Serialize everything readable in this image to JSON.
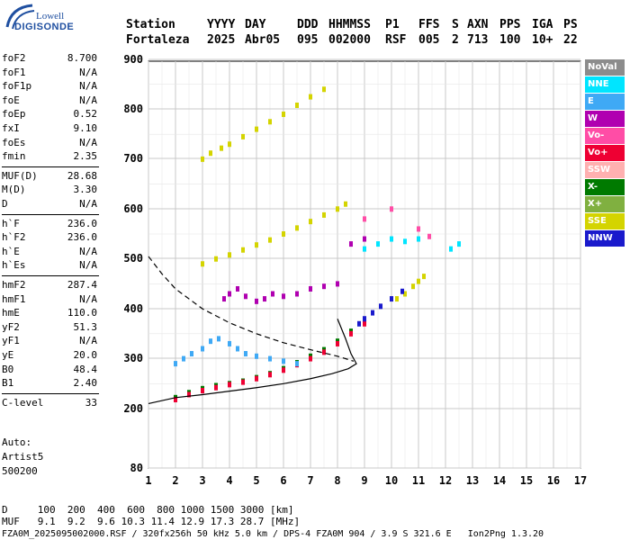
{
  "logo": {
    "brand": "Lowell",
    "product": "DIGISONDE"
  },
  "header": {
    "labels": [
      "Station",
      "YYYY",
      "DAY",
      "DDD",
      "HHMMSS",
      "P1",
      "FFS",
      "S",
      "AXN",
      "PPS",
      "IGA",
      "PS"
    ],
    "values": [
      "Fortaleza",
      "2025",
      "Abr05",
      "095",
      "002000",
      "RSF",
      "005",
      "2",
      "713",
      "100",
      "10+",
      "22"
    ]
  },
  "params": [
    {
      "k": "foF2",
      "v": "8.700"
    },
    {
      "k": "foF1",
      "v": "N/A"
    },
    {
      "k": "foF1p",
      "v": "N/A"
    },
    {
      "k": "foE",
      "v": "N/A"
    },
    {
      "k": "foEp",
      "v": "0.52"
    },
    {
      "k": "fxI",
      "v": "9.10"
    },
    {
      "k": "foEs",
      "v": "N/A"
    },
    {
      "k": "fmin",
      "v": "2.35"
    },
    {
      "k": "MUF(D)",
      "v": "28.68"
    },
    {
      "k": "M(D)",
      "v": "3.30"
    },
    {
      "k": "D",
      "v": "N/A"
    },
    {
      "k": "h`F",
      "v": "236.0"
    },
    {
      "k": "h`F2",
      "v": "236.0"
    },
    {
      "k": "h`E",
      "v": "N/A"
    },
    {
      "k": "h`Es",
      "v": "N/A"
    },
    {
      "k": "hmF2",
      "v": "287.4"
    },
    {
      "k": "hmF1",
      "v": "N/A"
    },
    {
      "k": "hmE",
      "v": "110.0"
    },
    {
      "k": "yF2",
      "v": "51.3"
    },
    {
      "k": "yF1",
      "v": "N/A"
    },
    {
      "k": "yE",
      "v": "20.0"
    },
    {
      "k": "B0",
      "v": "48.4"
    },
    {
      "k": "B1",
      "v": "2.40"
    },
    {
      "k": "C-level",
      "v": "33"
    }
  ],
  "auto": {
    "line1": "Auto:",
    "line2": "Artist5",
    "line3": "500200"
  },
  "bottom": {
    "d_line": "D     100  200  400  600  800 1000 1500 3000 [km]",
    "muf_line": "MUF   9.1  9.2  9.6 10.3 11.4 12.9 17.3 28.7 [MHz]",
    "file_line": "FZA0M_2025095002000.RSF / 320fx256h 50 kHz 5.0 km / DPS-4 FZA0M 904 / 3.9 S 321.6 E   Ion2Png 1.3.20"
  },
  "legend": [
    {
      "label": "NoVal",
      "color": "#8c8c8c",
      "text": "#ffffff"
    },
    {
      "label": "NNE",
      "color": "#00e5ff",
      "text": "#ffffff"
    },
    {
      "label": "E",
      "color": "#3fa9f5",
      "text": "#ffffff"
    },
    {
      "label": "W",
      "color": "#b000b0",
      "text": "#ffffff"
    },
    {
      "label": "Vo-",
      "color": "#ff4da6",
      "text": "#ffffff"
    },
    {
      "label": "Vo+",
      "color": "#ee0033",
      "text": "#ffffff"
    },
    {
      "label": "SSW",
      "color": "#ffb0b0",
      "text": "#ffffff"
    },
    {
      "label": "X-",
      "color": "#007a00",
      "text": "#ffffff"
    },
    {
      "label": "X+",
      "color": "#80b040",
      "text": "#ffffff"
    },
    {
      "label": "SSE",
      "color": "#d4d400",
      "text": "#ffffff"
    },
    {
      "label": "NNW",
      "color": "#1a1acc",
      "text": "#ffffff"
    }
  ],
  "chart_data": {
    "type": "scatter",
    "x_ticks": [
      "1",
      "2",
      "3",
      "4",
      "5",
      "6",
      "7",
      "8",
      "9",
      "10",
      "11",
      "12",
      "13",
      "14",
      "15",
      "16",
      "17"
    ],
    "y_ticks": [
      "80",
      "200",
      "300",
      "400",
      "500",
      "600",
      "700",
      "800",
      "900"
    ],
    "xlim": [
      1,
      17
    ],
    "grid": true,
    "series": [
      {
        "name": "SSE",
        "color": "#d4d400",
        "points": [
          [
            3.0,
            700
          ],
          [
            3.3,
            712
          ],
          [
            3.7,
            722
          ],
          [
            4.0,
            730
          ],
          [
            4.5,
            745
          ],
          [
            5.0,
            760
          ],
          [
            5.5,
            775
          ],
          [
            6.0,
            790
          ],
          [
            6.5,
            808
          ],
          [
            7.0,
            825
          ],
          [
            7.5,
            840
          ],
          [
            3.0,
            490
          ],
          [
            3.5,
            500
          ],
          [
            4.0,
            508
          ],
          [
            4.5,
            518
          ],
          [
            5.0,
            528
          ],
          [
            5.5,
            538
          ],
          [
            6.0,
            550
          ],
          [
            6.5,
            562
          ],
          [
            7.0,
            575
          ],
          [
            7.5,
            588
          ],
          [
            8.0,
            600
          ],
          [
            8.3,
            610
          ],
          [
            10.2,
            420
          ],
          [
            10.5,
            430
          ],
          [
            10.8,
            445
          ],
          [
            11.0,
            455
          ],
          [
            11.2,
            465
          ]
        ]
      },
      {
        "name": "X-",
        "color": "#007a00",
        "points": [
          [
            2.0,
            222
          ],
          [
            2.5,
            232
          ],
          [
            3.0,
            240
          ],
          [
            3.5,
            246
          ],
          [
            4.0,
            250
          ],
          [
            4.5,
            255
          ],
          [
            5.0,
            262
          ],
          [
            5.5,
            270
          ],
          [
            6.0,
            280
          ],
          [
            6.5,
            292
          ],
          [
            7.0,
            305
          ],
          [
            7.5,
            318
          ],
          [
            8.0,
            335
          ],
          [
            8.5,
            355
          ],
          [
            9.0,
            375
          ]
        ]
      },
      {
        "name": "Vo+",
        "color": "#ee0033",
        "points": [
          [
            2.0,
            218
          ],
          [
            2.5,
            228
          ],
          [
            3.0,
            236
          ],
          [
            3.5,
            242
          ],
          [
            4.0,
            248
          ],
          [
            4.5,
            253
          ],
          [
            5.0,
            260
          ],
          [
            5.5,
            268
          ],
          [
            6.0,
            277
          ],
          [
            6.5,
            288
          ],
          [
            7.0,
            300
          ],
          [
            7.5,
            313
          ],
          [
            8.0,
            330
          ],
          [
            8.5,
            350
          ],
          [
            9.0,
            370
          ]
        ]
      },
      {
        "name": "NNW",
        "color": "#1a1acc",
        "points": [
          [
            8.8,
            370
          ],
          [
            9.0,
            380
          ],
          [
            9.3,
            392
          ],
          [
            9.6,
            405
          ],
          [
            10.0,
            420
          ],
          [
            10.4,
            435
          ]
        ]
      },
      {
        "name": "E",
        "color": "#3fa9f5",
        "points": [
          [
            2.0,
            290
          ],
          [
            2.3,
            300
          ],
          [
            2.6,
            310
          ],
          [
            3.0,
            320
          ],
          [
            3.3,
            335
          ],
          [
            3.6,
            340
          ],
          [
            4.0,
            330
          ],
          [
            4.3,
            320
          ],
          [
            4.6,
            310
          ],
          [
            5.0,
            305
          ],
          [
            5.5,
            300
          ],
          [
            6.0,
            295
          ],
          [
            6.5,
            290
          ]
        ]
      },
      {
        "name": "W",
        "color": "#b000b0",
        "points": [
          [
            3.8,
            420
          ],
          [
            4.0,
            430
          ],
          [
            4.3,
            440
          ],
          [
            4.6,
            425
          ],
          [
            5.0,
            415
          ],
          [
            5.3,
            420
          ],
          [
            5.6,
            430
          ],
          [
            6.0,
            425
          ],
          [
            6.5,
            430
          ],
          [
            7.0,
            440
          ],
          [
            7.5,
            445
          ],
          [
            8.0,
            450
          ],
          [
            8.5,
            530
          ],
          [
            9.0,
            540
          ]
        ]
      },
      {
        "name": "NNE",
        "color": "#00e5ff",
        "points": [
          [
            9.0,
            520
          ],
          [
            9.5,
            530
          ],
          [
            10.0,
            540
          ],
          [
            10.5,
            535
          ],
          [
            11.0,
            540
          ],
          [
            12.2,
            520
          ],
          [
            12.5,
            530
          ]
        ]
      },
      {
        "name": "Vo-",
        "color": "#ff4da6",
        "points": [
          [
            9.0,
            580
          ],
          [
            10.0,
            600
          ],
          [
            11.0,
            560
          ],
          [
            11.4,
            545
          ]
        ]
      }
    ]
  }
}
